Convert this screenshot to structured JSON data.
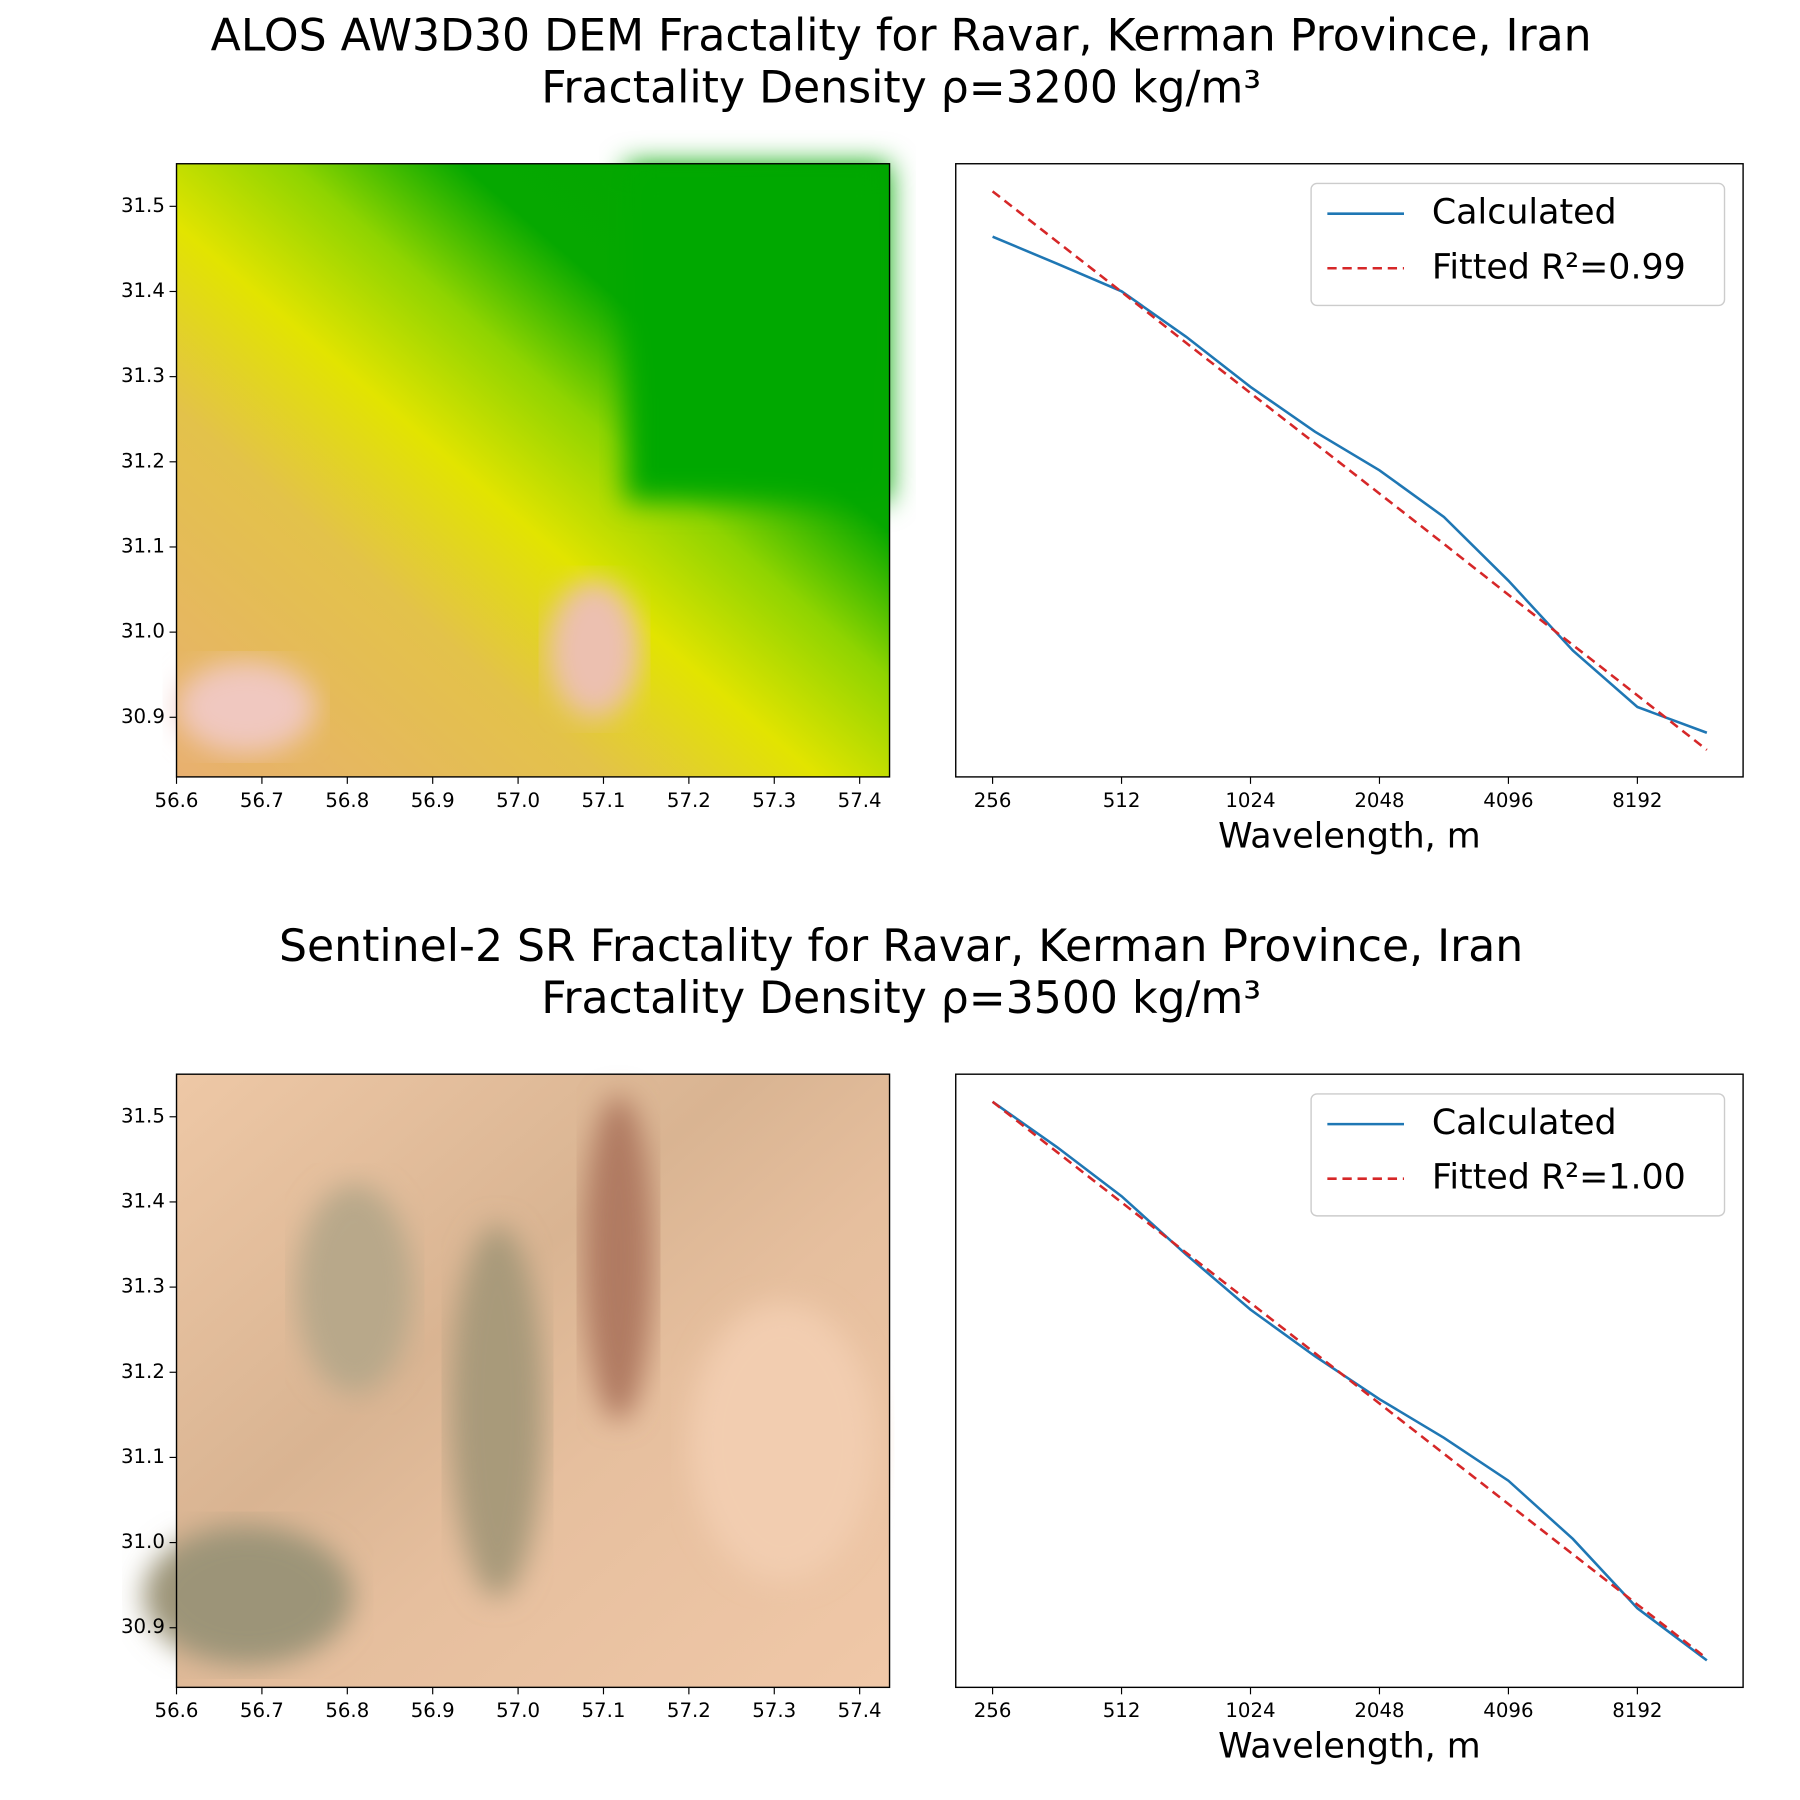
{
  "chart_data": [
    {
      "type": "image",
      "title": "ALOS AW3D30 DEM Fractality for Ravar, Kerman Province, Iran",
      "subtitle": "Fractality Density ρ=3200 kg/m³",
      "xlim": [
        56.6,
        57.435
      ],
      "ylim": [
        30.83,
        31.55
      ],
      "xticks": [
        56.6,
        56.7,
        56.8,
        56.9,
        {
          "value": 57,
          "label": "57.0"
        },
        57.1,
        57.2,
        57.3,
        57.4
      ],
      "yticks": [
        30.9,
        {
          "value": 31,
          "label": "31.0"
        },
        31.1,
        31.2,
        31.3,
        31.4,
        31.5
      ]
    },
    {
      "type": "line",
      "xscale": "log",
      "xlabel": "Wavelength, m",
      "legend": "upper right",
      "x": [
        256,
        362,
        512,
        724,
        1024,
        1448,
        2048,
        2896,
        4096,
        5793,
        8192,
        11900
      ],
      "xlim": [
        210,
        14460
      ],
      "ylim": [
        0,
        1
      ],
      "xticks": [
        256,
        512,
        1024,
        2048,
        4096,
        8192
      ],
      "series": [
        {
          "name": "Calculated",
          "color": "#1f77b4",
          "style": "solid",
          "values": [
            0.881,
            0.837,
            0.792,
            0.718,
            0.636,
            0.563,
            0.5,
            0.424,
            0.32,
            0.206,
            0.114,
            0.072
          ]
        },
        {
          "name": "Fitted R²=0.99",
          "color": "#d62728",
          "style": "dashed",
          "values": [
            0.955,
            0.873,
            0.791,
            0.708,
            0.626,
            0.544,
            0.462,
            0.38,
            0.297,
            0.215,
            0.133,
            0.044
          ]
        }
      ]
    },
    {
      "type": "image",
      "title": "Sentinel-2 SR Fractality for Ravar, Kerman Province, Iran",
      "subtitle": "Fractality Density ρ=3500 kg/m³",
      "xlim": [
        56.6,
        57.435
      ],
      "ylim": [
        30.83,
        31.55
      ],
      "xticks": [
        56.6,
        56.7,
        56.8,
        56.9,
        {
          "value": 57,
          "label": "57.0"
        },
        57.1,
        57.2,
        57.3,
        57.4
      ],
      "yticks": [
        30.9,
        {
          "value": 31,
          "label": "31.0"
        },
        31.1,
        31.2,
        31.3,
        31.4,
        31.5
      ]
    },
    {
      "type": "line",
      "xscale": "log",
      "xlabel": "Wavelength, m",
      "legend": "upper right",
      "x": [
        256,
        362,
        512,
        724,
        1024,
        1448,
        2048,
        2896,
        4096,
        5793,
        8192,
        11900
      ],
      "xlim": [
        210,
        14460
      ],
      "ylim": [
        0,
        1
      ],
      "xticks": [
        256,
        512,
        1024,
        2048,
        4096,
        8192
      ],
      "series": [
        {
          "name": "Calculated",
          "color": "#1f77b4",
          "style": "solid",
          "values": [
            0.955,
            0.881,
            0.801,
            0.706,
            0.616,
            0.54,
            0.47,
            0.407,
            0.337,
            0.242,
            0.129,
            0.044
          ]
        },
        {
          "name": "Fitted R²=1.00",
          "color": "#d62728",
          "style": "dashed",
          "values": [
            0.955,
            0.873,
            0.791,
            0.709,
            0.627,
            0.545,
            0.463,
            0.381,
            0.299,
            0.217,
            0.135,
            0.047
          ]
        }
      ]
    }
  ]
}
